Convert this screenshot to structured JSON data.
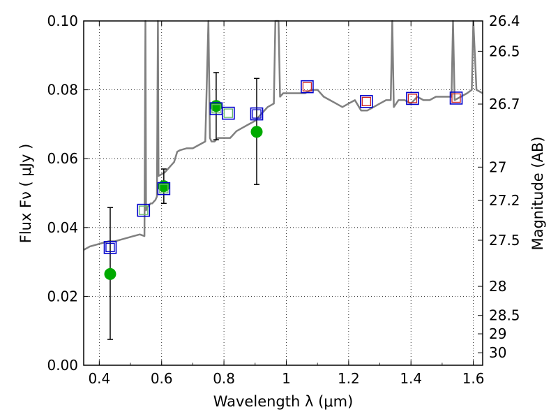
{
  "chart_data": {
    "type": "scatter",
    "title": "",
    "xlabel": "Wavelength  λ (μm)",
    "ylabel": "Flux  Fν  ( μJy )",
    "y2label": "Magnitude (AB)",
    "xlim": [
      0.35,
      1.63
    ],
    "ylim": [
      0.0,
      0.1
    ],
    "grid": true,
    "x_ticks": [
      0.4,
      0.6,
      0.8,
      1.0,
      1.2,
      1.4,
      1.6
    ],
    "x_tick_labels": [
      "0.4",
      "0.6",
      "0.8",
      "1",
      "1.2",
      "1.4",
      "1.6"
    ],
    "y_ticks": [
      0.0,
      0.02,
      0.04,
      0.06,
      0.08,
      0.1
    ],
    "y_tick_labels": [
      "0.00",
      "0.02",
      "0.04",
      "0.06",
      "0.08",
      "0.10"
    ],
    "y2_ticks": [
      26.4,
      26.5,
      26.7,
      27.0,
      27.2,
      27.5,
      28.0,
      28.5,
      29.0,
      30.0
    ],
    "y2_tick_labels": [
      "26.4",
      "26.5",
      "26.7",
      "27",
      "27.2",
      "27.5",
      "28",
      "28.5",
      "29",
      "30"
    ],
    "colors": {
      "spectrum": "#808080",
      "model_blue": "#0000cc",
      "model_green": "#66bb66",
      "model_red": "#cc2222",
      "observed": "#00aa00",
      "errorbar": "#000000"
    },
    "series": [
      {
        "name": "model spectrum",
        "kind": "line",
        "x": [
          0.35,
          0.37,
          0.39,
          0.41,
          0.43,
          0.45,
          0.47,
          0.49,
          0.51,
          0.53,
          0.545,
          0.548,
          0.55,
          0.555,
          0.56,
          0.565,
          0.57,
          0.575,
          0.58,
          0.585,
          0.588,
          0.59,
          0.6,
          0.61,
          0.62,
          0.63,
          0.64,
          0.65,
          0.66,
          0.68,
          0.7,
          0.72,
          0.74,
          0.75,
          0.755,
          0.76,
          0.77,
          0.78,
          0.8,
          0.82,
          0.84,
          0.86,
          0.88,
          0.9,
          0.92,
          0.94,
          0.96,
          0.965,
          0.975,
          0.98,
          0.99,
          1.0,
          1.02,
          1.04,
          1.06,
          1.08,
          1.1,
          1.12,
          1.14,
          1.16,
          1.18,
          1.2,
          1.22,
          1.24,
          1.26,
          1.28,
          1.3,
          1.32,
          1.335,
          1.34,
          1.345,
          1.36,
          1.38,
          1.4,
          1.42,
          1.44,
          1.46,
          1.48,
          1.5,
          1.52,
          1.53,
          1.535,
          1.54,
          1.56,
          1.58,
          1.595,
          1.6,
          1.61,
          1.63
        ],
        "y": [
          0.0335,
          0.0345,
          0.035,
          0.0355,
          0.036,
          0.036,
          0.0365,
          0.037,
          0.0375,
          0.038,
          0.0375,
          0.1,
          0.045,
          0.046,
          0.0465,
          0.047,
          0.047,
          0.0475,
          0.048,
          0.049,
          0.1,
          0.055,
          0.0555,
          0.056,
          0.057,
          0.058,
          0.059,
          0.062,
          0.0625,
          0.063,
          0.063,
          0.064,
          0.065,
          0.1,
          0.066,
          0.065,
          0.065,
          0.066,
          0.066,
          0.066,
          0.068,
          0.069,
          0.07,
          0.071,
          0.073,
          0.075,
          0.076,
          0.1,
          0.1,
          0.078,
          0.079,
          0.079,
          0.079,
          0.079,
          0.079,
          0.08,
          0.08,
          0.078,
          0.077,
          0.076,
          0.075,
          0.076,
          0.077,
          0.074,
          0.074,
          0.075,
          0.076,
          0.077,
          0.077,
          0.1,
          0.075,
          0.077,
          0.077,
          0.076,
          0.078,
          0.077,
          0.077,
          0.078,
          0.078,
          0.078,
          0.078,
          0.1,
          0.077,
          0.078,
          0.079,
          0.08,
          0.1,
          0.08,
          0.079
        ]
      },
      {
        "name": "model photometry",
        "kind": "square",
        "x": [
          0.435,
          0.542,
          0.607,
          0.775,
          0.814,
          0.905,
          1.067,
          1.257,
          1.405,
          1.545
        ],
        "y": [
          0.0342,
          0.045,
          0.0513,
          0.0745,
          0.0732,
          0.073,
          0.0809,
          0.0766,
          0.0775,
          0.0776
        ],
        "inner": [
          "blue",
          "green",
          "green",
          "green",
          "green",
          "blue",
          "red",
          "red",
          "red",
          "red"
        ]
      },
      {
        "name": "observed photometry",
        "kind": "circle",
        "x": [
          0.435,
          0.607,
          0.775,
          0.905
        ],
        "y": [
          0.0265,
          0.052,
          0.0753,
          0.0678
        ],
        "err_low": [
          0.0075,
          0.047,
          0.0655,
          0.0525
        ],
        "err_high": [
          0.0458,
          0.057,
          0.085,
          0.0833
        ]
      }
    ]
  }
}
